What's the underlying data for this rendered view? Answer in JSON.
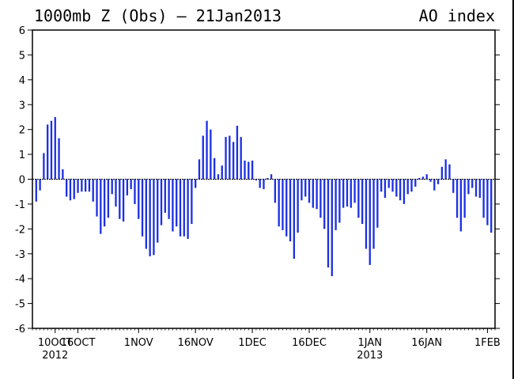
{
  "title_left": "1000mb Z (Obs) – 21Jan2013",
  "title_right": "AO index",
  "chart_data": {
    "type": "bar",
    "title": "1000mb Z (Obs) – 21Jan2013",
    "subtitle": "AO index",
    "xlabel": "",
    "ylabel": "",
    "ylim": [
      -6,
      6
    ],
    "yticks": [
      -6,
      -5,
      -4,
      -3,
      -2,
      -1,
      0,
      1,
      2,
      3,
      4,
      5,
      6
    ],
    "xlim": [
      "2012-10-04",
      "2013-02-03"
    ],
    "x_tick_labels": [
      {
        "date": "2012-10-10",
        "label": "10OCT",
        "sublabel": "2012"
      },
      {
        "date": "2012-10-16",
        "label": "16OCT",
        "sublabel": ""
      },
      {
        "date": "2012-11-01",
        "label": "1NOV",
        "sublabel": ""
      },
      {
        "date": "2012-11-16",
        "label": "16NOV",
        "sublabel": ""
      },
      {
        "date": "2012-12-01",
        "label": "1DEC",
        "sublabel": ""
      },
      {
        "date": "2012-12-16",
        "label": "16DEC",
        "sublabel": ""
      },
      {
        "date": "2013-01-01",
        "label": "1JAN",
        "sublabel": "2013"
      },
      {
        "date": "2013-01-16",
        "label": "16JAN",
        "sublabel": ""
      },
      {
        "date": "2013-02-01",
        "label": "1FEB",
        "sublabel": ""
      }
    ],
    "grid": false,
    "zero_line": true,
    "bar_color": "#1b2fe6",
    "start_date": "2012-10-05",
    "values": [
      -0.9,
      -0.45,
      1.05,
      2.2,
      2.35,
      2.5,
      1.65,
      0.4,
      -0.7,
      -0.85,
      -0.8,
      -0.55,
      -0.5,
      -0.5,
      -0.5,
      -0.9,
      -1.5,
      -2.2,
      -1.9,
      -1.55,
      -0.6,
      -1.1,
      -1.6,
      -1.7,
      -0.65,
      -0.4,
      -1.0,
      -1.6,
      -2.3,
      -2.8,
      -3.1,
      -3.05,
      -2.55,
      -1.85,
      -1.35,
      -1.6,
      -2.1,
      -1.9,
      -2.3,
      -2.3,
      -2.4,
      -1.8,
      -0.35,
      0.8,
      1.75,
      2.35,
      2.0,
      0.85,
      0.2,
      0.55,
      1.7,
      1.75,
      1.5,
      2.15,
      1.7,
      0.75,
      0.7,
      0.75,
      -0.05,
      -0.35,
      -0.4,
      0.05,
      0.2,
      -0.95,
      -1.9,
      -2.05,
      -2.3,
      -2.5,
      -3.2,
      -2.15,
      -0.85,
      -0.7,
      -0.95,
      -1.15,
      -1.2,
      -1.55,
      -2.0,
      -3.55,
      -3.9,
      -2.05,
      -1.75,
      -1.15,
      -1.1,
      -1.15,
      -0.95,
      -1.55,
      -1.8,
      -2.8,
      -3.45,
      -2.8,
      -1.95,
      -0.5,
      -0.75,
      -0.35,
      -0.5,
      -0.7,
      -0.85,
      -1.0,
      -0.6,
      -0.5,
      -0.3,
      0.05,
      0.1,
      0.2,
      -0.1,
      -0.45,
      -0.2,
      0.5,
      0.8,
      0.6,
      -0.55,
      -1.55,
      -2.1,
      -1.55,
      -0.6,
      -0.35,
      -0.7,
      -0.75,
      -1.55,
      -1.85,
      -2.15
    ]
  }
}
